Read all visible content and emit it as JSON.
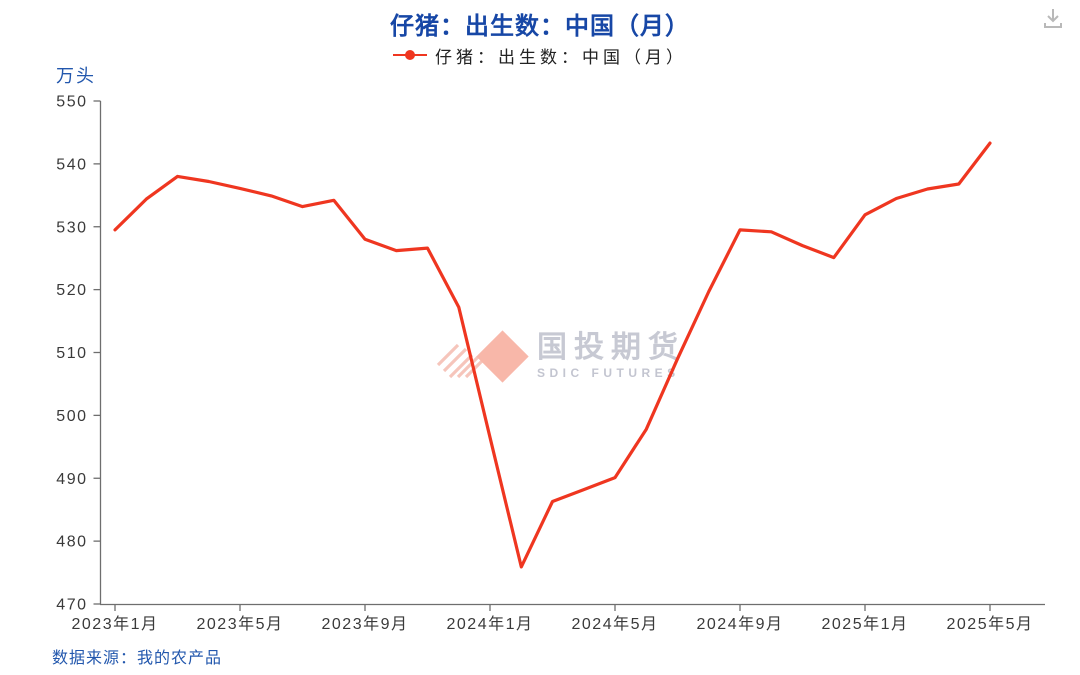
{
  "header": {
    "title": "仔猪：出生数：中国（月）"
  },
  "legend": {
    "label": "仔猪：出生数：中国（月）",
    "marker_color": "#ef3620"
  },
  "axes": {
    "unit_label": "万头",
    "y_ticks": [
      550,
      540,
      530,
      520,
      510,
      500,
      490,
      480,
      470
    ],
    "x_tick_labels": [
      "2023年1月",
      "2023年5月",
      "2023年9月",
      "2024年1月",
      "2024年5月",
      "2024年9月",
      "2025年1月",
      "2025年5月"
    ]
  },
  "footer": {
    "source": "数据来源：我的农产品"
  },
  "watermark": {
    "cn": "国投期货",
    "en": "SDIC FUTURES"
  },
  "icons": {
    "download": "download-icon"
  },
  "colors": {
    "line": "#ef3620",
    "title_blue": "#1747a6",
    "text_blue": "#2257ad",
    "axis": "#6e6e6e",
    "tick_text": "#3a3a3a",
    "watermark_gray": "#c7c9d3",
    "watermark_pink": "#f8b7a9"
  },
  "chart_data": {
    "type": "line",
    "title": "仔猪：出生数：中国（月）",
    "series_name": "仔猪：出生数：中国（月）",
    "ylabel": "万头",
    "ylim": [
      470,
      550
    ],
    "ytick_step": 10,
    "grid": false,
    "legend_position": "top-center",
    "categories": [
      "2023年1月",
      "2023年2月",
      "2023年3月",
      "2023年4月",
      "2023年5月",
      "2023年6月",
      "2023年7月",
      "2023年8月",
      "2023年9月",
      "2023年10月",
      "2023年11月",
      "2023年12月",
      "2024年1月",
      "2024年2月",
      "2024年3月",
      "2024年4月",
      "2024年5月",
      "2024年6月",
      "2024年7月",
      "2024年8月",
      "2024年9月",
      "2024年10月",
      "2024年11月",
      "2024年12月",
      "2025年1月",
      "2025年2月",
      "2025年3月",
      "2025年4月",
      "2025年5月"
    ],
    "values": [
      529.5,
      534.4,
      538.0,
      537.2,
      536.1,
      534.9,
      533.2,
      534.2,
      528.0,
      526.2,
      526.6,
      517.2,
      496.5,
      475.9,
      486.3,
      488.2,
      490.1,
      497.8,
      509.0,
      519.7,
      529.5,
      529.2,
      527.0,
      525.1,
      531.9,
      534.5,
      536.0,
      536.8,
      543.3
    ],
    "xtick_indices": [
      0,
      4,
      8,
      12,
      16,
      20,
      24,
      28
    ]
  }
}
